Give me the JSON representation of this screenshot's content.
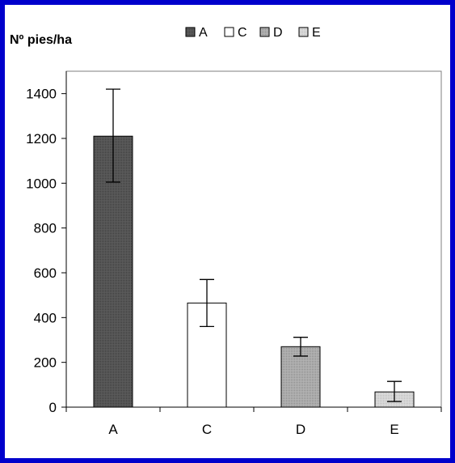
{
  "chart_data": {
    "type": "bar",
    "title": "",
    "ylabel": "Nº pies/ha",
    "xlabel": "",
    "categories": [
      "A",
      "C",
      "D",
      "E"
    ],
    "series": [
      {
        "name": "",
        "values": [
          1210,
          465,
          270,
          68
        ]
      }
    ],
    "error": [
      {
        "low": 1005,
        "high": 1420
      },
      {
        "low": 360,
        "high": 570
      },
      {
        "low": 228,
        "high": 312
      },
      {
        "low": 25,
        "high": 115
      }
    ],
    "ylim": [
      0,
      1500
    ],
    "yticks": [
      0,
      200,
      400,
      600,
      800,
      1000,
      1200,
      1400
    ],
    "grid": false,
    "legend": {
      "placement": "top-center",
      "entries": [
        "A",
        "C",
        "D",
        "E"
      ]
    },
    "colors": {
      "A": "#555555",
      "C": "#ffffff",
      "D": "#a9a9a9",
      "E": "#d2d2d2",
      "border": "#0000cc"
    }
  }
}
